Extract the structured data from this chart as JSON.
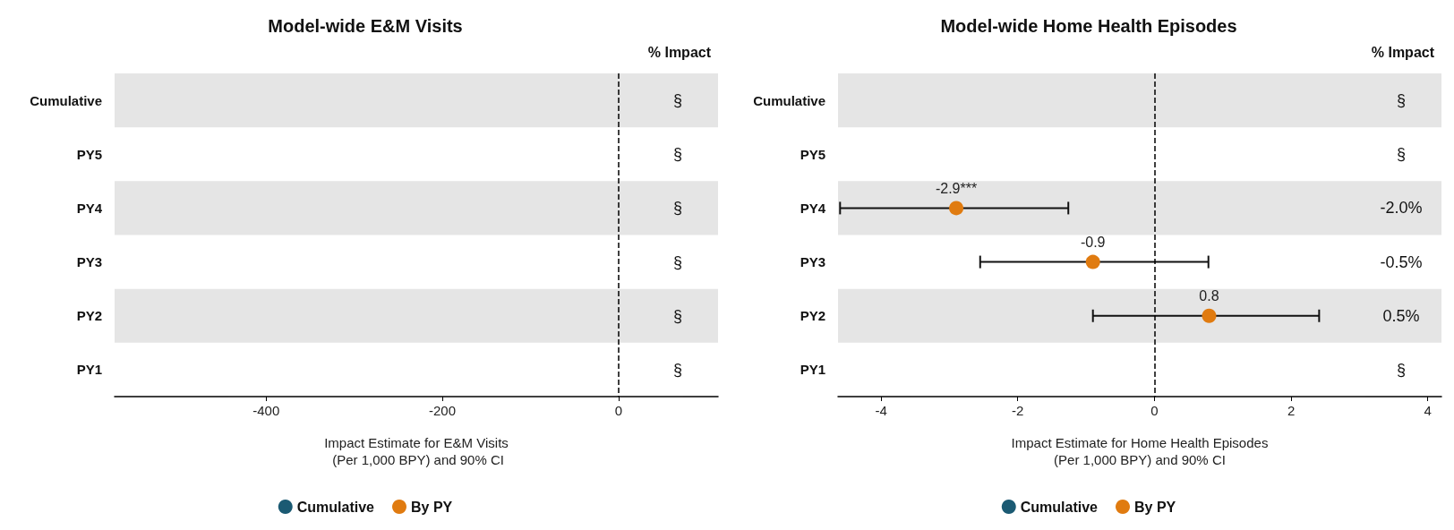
{
  "chart_data": [
    {
      "type": "scatter",
      "orientation": "horizontal",
      "title": "Model-wide E&M Visits",
      "xlabel": "Impact Estimate for E&M Visits\n (Per 1,000 BPY) and 90% CI",
      "categories": [
        "Cumulative",
        "PY5",
        "PY4",
        "PY3",
        "PY2",
        "PY1"
      ],
      "xlim": [
        -572,
        113
      ],
      "xticks": [
        -400,
        -200,
        0
      ],
      "series": [
        {
          "name": "Cumulative",
          "color": "#1b5a73",
          "values": [
            null,
            null,
            null,
            null,
            null,
            null
          ]
        },
        {
          "name": "By PY",
          "color": "#e07b10",
          "values": [
            null,
            null,
            null,
            null,
            null,
            null
          ]
        }
      ],
      "ref_lines": [
        {
          "axis": "x",
          "value": 0,
          "line_style": "dashed",
          "color": "#000000"
        }
      ],
      "bands": [
        {
          "axis": "y",
          "from": "Cumulative",
          "to": "Cumulative",
          "color": "#e5e5e5"
        },
        {
          "axis": "y",
          "from": "PY4",
          "to": "PY4",
          "color": "#e5e5e5"
        },
        {
          "axis": "y",
          "from": "PY2",
          "to": "PY2",
          "color": "#e5e5e5"
        }
      ],
      "annotations": [
        "% Impact",
        "§",
        "§",
        "§",
        "§",
        "§",
        "§"
      ],
      "legend": "bottom",
      "marker": "circle",
      "grid": false
    },
    {
      "type": "scatter",
      "orientation": "horizontal",
      "title": "Model-wide Home Health Episodes",
      "xlabel": "Impact Estimate for Home Health Episodes\n(Per 1,000 BPY) and 90% CI",
      "categories": [
        "Cumulative",
        "PY5",
        "PY4",
        "PY3",
        "PY2",
        "PY1"
      ],
      "xlim": [
        -4.63,
        4.2
      ],
      "xticks": [
        -4,
        -2,
        0,
        2,
        4
      ],
      "series": [
        {
          "name": "Cumulative",
          "color": "#1b5a73",
          "values": [
            null,
            null,
            null,
            null,
            null,
            null
          ]
        },
        {
          "name": "By PY",
          "color": "#e07b10",
          "values": [
            null,
            null,
            -2.9,
            -0.9,
            0.8,
            null
          ],
          "errors": [
            null,
            null,
            [
              -4.6,
              -1.26
            ],
            [
              -2.55,
              0.79
            ],
            [
              -0.9,
              2.41
            ],
            null
          ],
          "value_labels": [
            null,
            null,
            "-2.9***",
            "-0.9",
            "0.8",
            null
          ]
        }
      ],
      "ref_lines": [
        {
          "axis": "x",
          "value": 0,
          "line_style": "dashed",
          "color": "#000000"
        }
      ],
      "bands": [
        {
          "axis": "y",
          "from": "Cumulative",
          "to": "Cumulative",
          "color": "#e5e5e5"
        },
        {
          "axis": "y",
          "from": "PY4",
          "to": "PY4",
          "color": "#e5e5e5"
        },
        {
          "axis": "y",
          "from": "PY2",
          "to": "PY2",
          "color": "#e5e5e5"
        }
      ],
      "annotations": [
        "% Impact",
        "§",
        "§",
        "-2.0%",
        "-0.5%",
        "0.5%",
        "§"
      ],
      "legend": "bottom",
      "marker": "circle",
      "grid": false
    }
  ]
}
